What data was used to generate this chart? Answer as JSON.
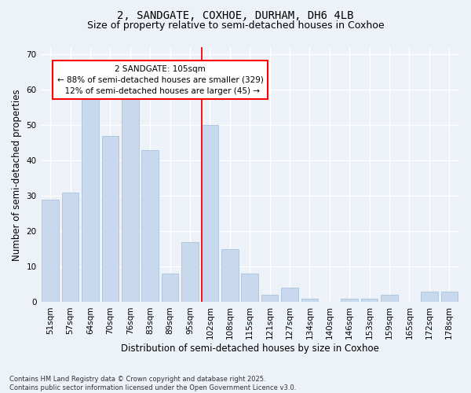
{
  "title1": "2, SANDGATE, COXHOE, DURHAM, DH6 4LB",
  "title2": "Size of property relative to semi-detached houses in Coxhoe",
  "xlabel": "Distribution of semi-detached houses by size in Coxhoe",
  "ylabel": "Number of semi-detached properties",
  "categories": [
    "51sqm",
    "57sqm",
    "64sqm",
    "70sqm",
    "76sqm",
    "83sqm",
    "89sqm",
    "95sqm",
    "102sqm",
    "108sqm",
    "115sqm",
    "121sqm",
    "127sqm",
    "134sqm",
    "140sqm",
    "146sqm",
    "153sqm",
    "159sqm",
    "165sqm",
    "172sqm",
    "178sqm"
  ],
  "values": [
    29,
    31,
    58,
    47,
    58,
    43,
    8,
    17,
    50,
    15,
    8,
    2,
    4,
    1,
    0,
    1,
    1,
    2,
    0,
    3,
    3
  ],
  "bar_color": "#c9d9ed",
  "bar_edge_color": "#a8c4de",
  "marker_index": 8,
  "marker_label": "2 SANDGATE: 105sqm",
  "marker_pct_smaller": 88,
  "marker_count_smaller": 329,
  "marker_pct_larger": 12,
  "marker_count_larger": 45,
  "marker_color": "red",
  "bg_color": "#edf2f9",
  "grid_color": "#ffffff",
  "ylim": [
    0,
    72
  ],
  "yticks": [
    0,
    10,
    20,
    30,
    40,
    50,
    60,
    70
  ],
  "footnote": "Contains HM Land Registry data © Crown copyright and database right 2025.\nContains public sector information licensed under the Open Government Licence v3.0.",
  "title_fontsize": 10,
  "subtitle_fontsize": 9,
  "axis_label_fontsize": 8.5,
  "tick_fontsize": 7.5,
  "annotation_fontsize": 7.5,
  "footnote_fontsize": 6
}
